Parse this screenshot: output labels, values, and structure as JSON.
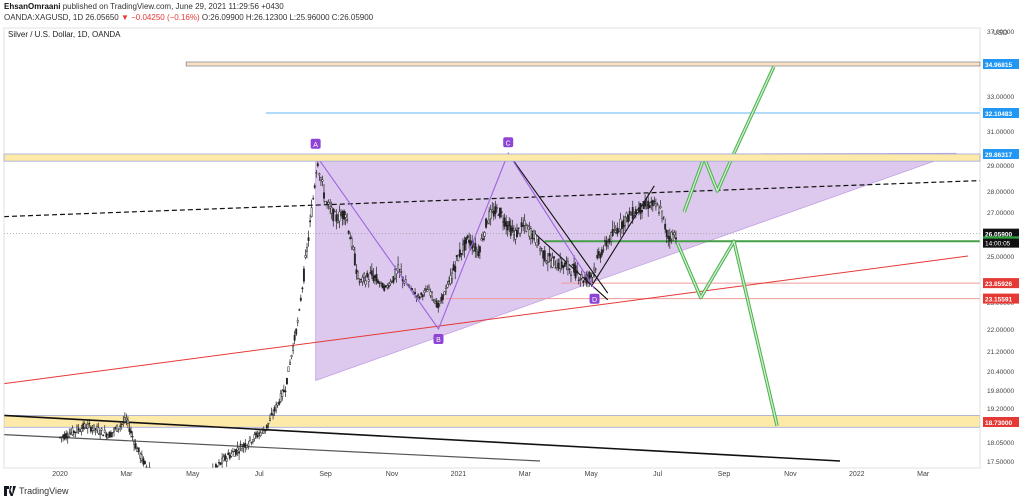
{
  "header": {
    "author": "EhsanOmraani",
    "published": "published on TradingView.com, June 29, 2021 11:29:56 +0430",
    "symbol": "OANDA:XAGUSD, 1D",
    "last": "26.05650",
    "change": "▼ −0.04250 (−0.16%)",
    "ohlc": "O:26.09900 H:26.12300 L:25.96000 C:26.05900"
  },
  "footer": {
    "brand": "TradingView"
  },
  "chart_data": {
    "type": "candlestick",
    "title": "Silver / U.S. Dollar, 1D, OANDA",
    "currency": "USD",
    "x_ticks": [
      "2020",
      "Mar",
      "May",
      "Jul",
      "Sep",
      "Nov",
      "2021",
      "Mar",
      "May",
      "Jul",
      "Sep",
      "Nov",
      "2022",
      "Mar"
    ],
    "x_tick_months": [
      0,
      2,
      4,
      6,
      8,
      10,
      12,
      14,
      16,
      18,
      20,
      22,
      24,
      26
    ],
    "y_ticks": [
      37,
      33,
      31,
      29,
      28,
      27,
      26,
      25,
      24,
      23,
      22,
      21.2,
      20.4,
      19.8,
      19.2,
      18.05,
      17.5
    ],
    "y_tick_labels": [
      "37.00000",
      "33.00000",
      "31.00000",
      "29.00000",
      "28.00000",
      "27.00000",
      "26.00000",
      "25.00000",
      "24.00000",
      "23.00000",
      "22.00000",
      "21.20000",
      "20.40000",
      "19.80000",
      "19.20000",
      "18.05000",
      "17.50000"
    ],
    "price_labels": [
      {
        "text": "34.96815",
        "value": 34.96815,
        "color": "#2196f3"
      },
      {
        "text": "32.10483",
        "value": 32.10483,
        "color": "#2196f3"
      },
      {
        "text": "29.86317",
        "value": 29.86317,
        "color": "#2196f3"
      },
      {
        "text": "26.05900",
        "value": 26.059,
        "color": "#111111"
      },
      {
        "text": "25.70000",
        "value": 25.7,
        "color": "#2e9e3e"
      },
      {
        "text": "23.85926",
        "value": 23.85926,
        "color": "#e53935"
      },
      {
        "text": "23.15591",
        "value": 23.15591,
        "color": "#e53935"
      },
      {
        "text": "18.73000",
        "value": 18.73,
        "color": "#e53935"
      }
    ],
    "countdown": "14:00:05",
    "pattern_points": [
      {
        "label": "A",
        "month": 7.7,
        "price": 29.8
      },
      {
        "label": "B",
        "month": 11.4,
        "price": 22.0
      },
      {
        "label": "C",
        "month": 13.5,
        "price": 29.9
      },
      {
        "label": "D",
        "month": 16.1,
        "price": 23.6
      }
    ],
    "candle_path": [
      [
        0.0,
        18.2
      ],
      [
        0.8,
        18.6
      ],
      [
        1.5,
        18.3
      ],
      [
        2.0,
        18.8
      ],
      [
        2.3,
        17.9
      ],
      [
        2.6,
        17.3
      ],
      [
        4.3,
        16.8
      ],
      [
        5.0,
        17.6
      ],
      [
        5.6,
        18.0
      ],
      [
        6.2,
        18.5
      ],
      [
        6.8,
        19.9
      ],
      [
        7.2,
        22.5
      ],
      [
        7.5,
        26.0
      ],
      [
        7.75,
        29.3
      ],
      [
        8.0,
        27.5
      ],
      [
        8.3,
        26.7
      ],
      [
        8.6,
        27.0
      ],
      [
        8.8,
        25.5
      ],
      [
        9.0,
        23.9
      ],
      [
        9.4,
        24.2
      ],
      [
        9.8,
        23.6
      ],
      [
        10.2,
        24.4
      ],
      [
        10.5,
        23.7
      ],
      [
        10.8,
        23.2
      ],
      [
        11.1,
        23.6
      ],
      [
        11.4,
        22.8
      ],
      [
        11.7,
        23.8
      ],
      [
        12.0,
        25.0
      ],
      [
        12.3,
        25.8
      ],
      [
        12.6,
        25.2
      ],
      [
        12.9,
        26.8
      ],
      [
        13.2,
        27.1
      ],
      [
        13.5,
        26.4
      ],
      [
        13.7,
        26.0
      ],
      [
        14.0,
        26.4
      ],
      [
        14.3,
        25.9
      ],
      [
        14.6,
        25.0
      ],
      [
        14.9,
        24.7
      ],
      [
        15.2,
        24.6
      ],
      [
        15.5,
        24.4
      ],
      [
        15.8,
        24.0
      ],
      [
        16.0,
        24.2
      ],
      [
        16.3,
        25.2
      ],
      [
        16.6,
        25.9
      ],
      [
        16.9,
        26.5
      ],
      [
        17.2,
        26.9
      ],
      [
        17.5,
        27.2
      ],
      [
        17.8,
        27.4
      ],
      [
        18.1,
        27.1
      ],
      [
        18.3,
        25.9
      ],
      [
        18.6,
        26.06
      ]
    ]
  }
}
